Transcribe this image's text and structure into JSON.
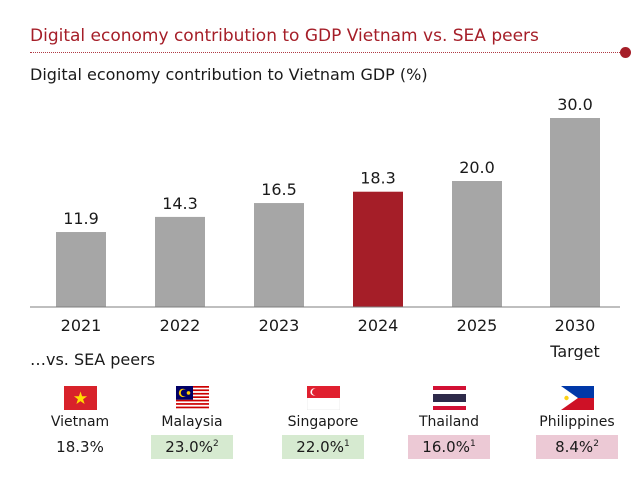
{
  "header": {
    "title": "Digital economy contribution to GDP Vietnam vs. SEA peers"
  },
  "chart_title": "Digital economy contribution to Vietnam GDP (%)",
  "chart_data": {
    "type": "bar",
    "title": "Digital economy contribution to Vietnam GDP (%)",
    "categories": [
      "2021",
      "2022",
      "2023",
      "2024",
      "2025",
      "2030\nTarget"
    ],
    "category_lines": [
      [
        "2021"
      ],
      [
        "2022"
      ],
      [
        "2023"
      ],
      [
        "2024"
      ],
      [
        "2025"
      ],
      [
        "2030",
        "Target"
      ]
    ],
    "values": [
      11.9,
      14.3,
      16.5,
      18.3,
      20.0,
      30.0
    ],
    "value_labels": [
      "11.9",
      "14.3",
      "16.5",
      "18.3",
      "20.0",
      "30.0"
    ],
    "highlight_index": 3,
    "colors": {
      "bar": "#a6a6a6",
      "highlight": "#a51e28",
      "axis": "#7f7f7f"
    },
    "ylim": [
      0,
      30
    ],
    "grid": false,
    "legend": "none"
  },
  "peers": {
    "title": "…vs. SEA peers",
    "items": [
      {
        "name": "Vietnam",
        "value": "18.3%",
        "sup": "",
        "style": "plain",
        "flag": "vietnam-flag-icon"
      },
      {
        "name": "Malaysia",
        "value": "23.0%",
        "sup": "2",
        "style": "green",
        "flag": "malaysia-flag-icon"
      },
      {
        "name": "Singapore",
        "value": "22.0%",
        "sup": "1",
        "style": "green",
        "flag": "singapore-flag-icon"
      },
      {
        "name": "Thailand",
        "value": "16.0%",
        "sup": "1",
        "style": "pink",
        "flag": "thailand-flag-icon"
      },
      {
        "name": "Philippines",
        "value": "8.4%",
        "sup": "2",
        "style": "pink",
        "flag": "philippines-flag-icon"
      }
    ]
  }
}
